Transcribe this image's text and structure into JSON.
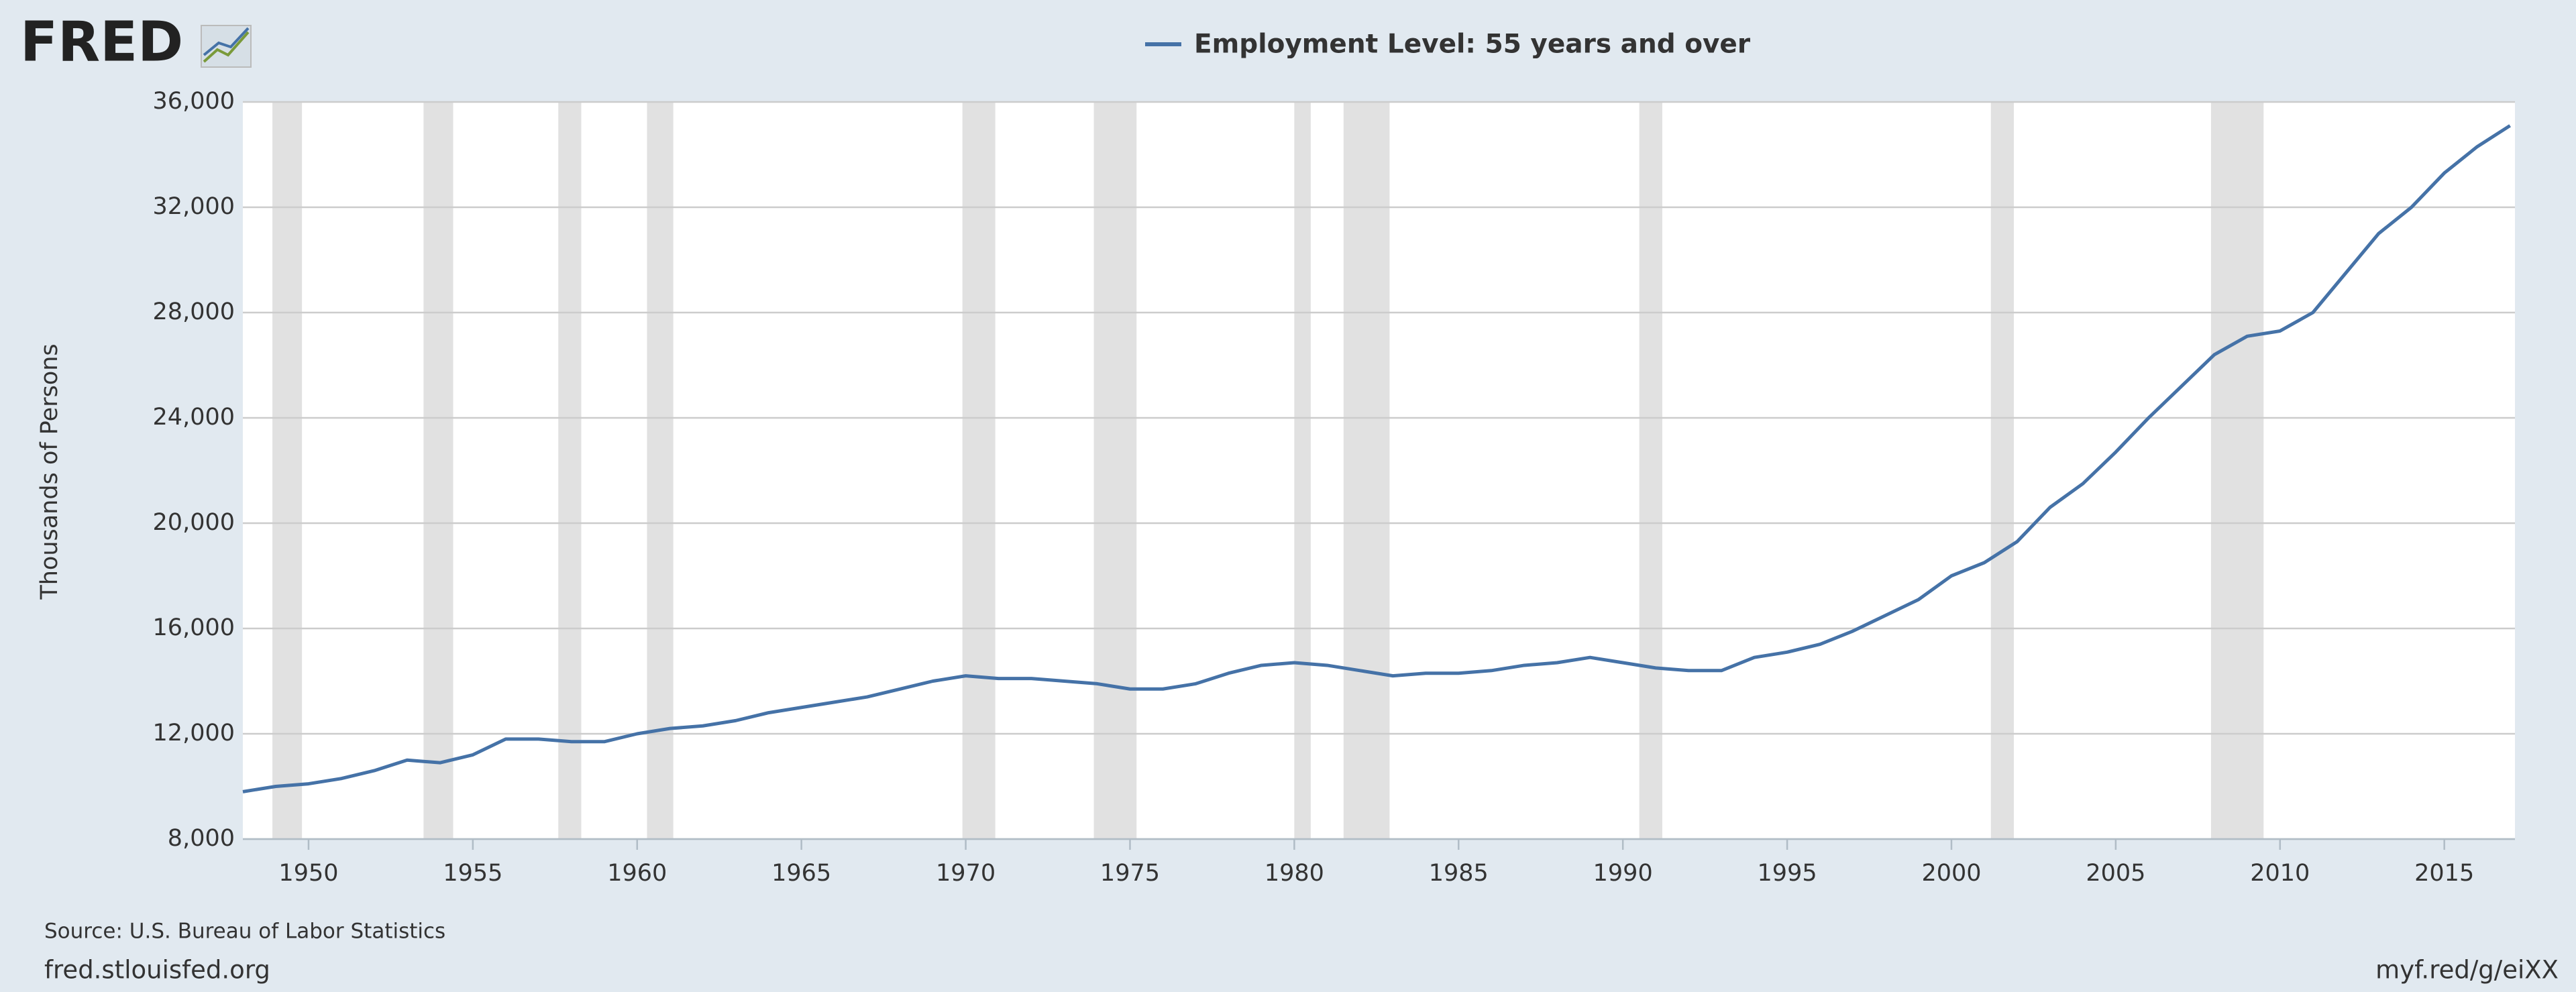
{
  "logo": "FRED",
  "chart_data": {
    "type": "line",
    "y_label": "Thousands of Persons",
    "source": "Source: U.S. Bureau of Labor Statistics",
    "footer_left": "fred.stlouisfed.org",
    "footer_right": "myf.red/g/eiXX",
    "series": [
      {
        "name": "Employment Level: 55 years and over",
        "color": "#4572a7",
        "x": [
          1948,
          1949,
          1950,
          1951,
          1952,
          1953,
          1954,
          1955,
          1956,
          1957,
          1958,
          1959,
          1960,
          1961,
          1962,
          1963,
          1964,
          1965,
          1966,
          1967,
          1968,
          1969,
          1970,
          1971,
          1972,
          1973,
          1974,
          1975,
          1976,
          1977,
          1978,
          1979,
          1980,
          1981,
          1982,
          1983,
          1984,
          1985,
          1986,
          1987,
          1988,
          1989,
          1990,
          1991,
          1992,
          1993,
          1994,
          1995,
          1996,
          1997,
          1998,
          1999,
          2000,
          2001,
          2002,
          2003,
          2004,
          2005,
          2006,
          2007,
          2008,
          2009,
          2010,
          2011,
          2012,
          2013,
          2014,
          2015,
          2016,
          2017
        ],
        "values": [
          9800,
          10000,
          10100,
          10300,
          10600,
          11000,
          10900,
          11200,
          11800,
          11800,
          11700,
          11700,
          12000,
          12200,
          12300,
          12500,
          12800,
          13000,
          13200,
          13400,
          13700,
          14000,
          14200,
          14100,
          14100,
          14000,
          13900,
          13700,
          13700,
          13900,
          14300,
          14600,
          14700,
          14600,
          14400,
          14200,
          14300,
          14300,
          14400,
          14600,
          14700,
          14900,
          14700,
          14500,
          14400,
          14400,
          14900,
          15100,
          15400,
          15900,
          16500,
          17100,
          18000,
          18500,
          19300,
          20600,
          21500,
          22700,
          24000,
          25200,
          26400,
          27100,
          27300,
          28000,
          29500,
          31000,
          32000,
          33300,
          34300,
          35100
        ]
      }
    ],
    "recessions": [
      [
        1948.9,
        1949.8
      ],
      [
        1953.5,
        1954.4
      ],
      [
        1957.6,
        1958.3
      ],
      [
        1960.3,
        1961.1
      ],
      [
        1969.9,
        1970.9
      ],
      [
        1973.9,
        1975.2
      ],
      [
        1980.0,
        1980.5
      ],
      [
        1981.5,
        1982.9
      ],
      [
        1990.5,
        1991.2
      ],
      [
        2001.2,
        2001.9
      ],
      [
        2007.9,
        2009.5
      ]
    ],
    "recession_color": "#e1e1e1",
    "xlim": [
      1948,
      2017.15
    ],
    "xticks": [
      1950,
      1955,
      1960,
      1965,
      1970,
      1975,
      1980,
      1985,
      1990,
      1995,
      2000,
      2005,
      2010,
      2015
    ],
    "ylim": [
      8000,
      36000
    ],
    "yticks": [
      {
        "value": 8000,
        "label": "8,000"
      },
      {
        "value": 12000,
        "label": "12,000"
      },
      {
        "value": 16000,
        "label": "16,000"
      },
      {
        "value": 20000,
        "label": "20,000"
      },
      {
        "value": 24000,
        "label": "24,000"
      },
      {
        "value": 28000,
        "label": "28,000"
      },
      {
        "value": 32000,
        "label": "32,000"
      },
      {
        "value": 36000,
        "label": "36,000"
      }
    ],
    "grid": true
  }
}
